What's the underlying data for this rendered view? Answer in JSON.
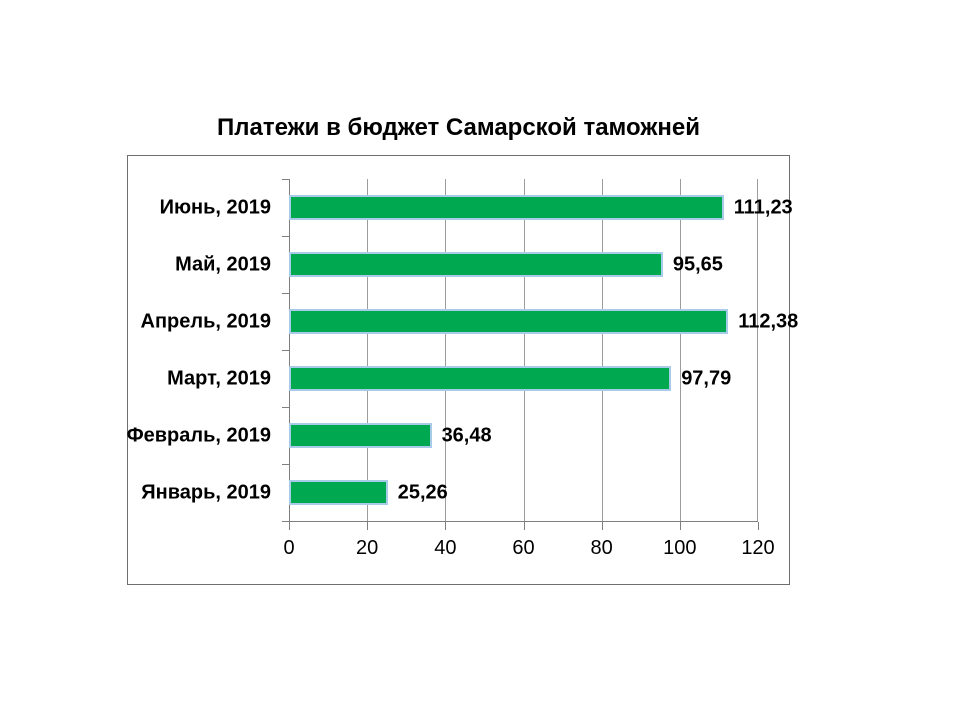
{
  "page": {
    "background": "#ffffff"
  },
  "chart_data": {
    "type": "bar",
    "orientation": "horizontal",
    "title": "Платежи в бюджет Самарской таможней",
    "categories": [
      "Июнь, 2019",
      "Май, 2019",
      "Апрель, 2019",
      "Март, 2019",
      "Февраль, 2019",
      "Январь, 2019"
    ],
    "values": [
      111.23,
      95.65,
      112.38,
      97.79,
      36.48,
      25.26
    ],
    "value_labels": [
      "111,23",
      "95,65",
      "112,38",
      "97,79",
      "36,48",
      "25,26"
    ],
    "xlabel": "",
    "ylabel": "",
    "xlim": [
      0,
      120
    ],
    "x_ticks": [
      0,
      20,
      40,
      60,
      80,
      100,
      120
    ],
    "x_tick_labels": [
      "0",
      "20",
      "40",
      "60",
      "80",
      "100",
      "120"
    ],
    "grid": true,
    "legend": false,
    "colors": {
      "bar_fill": "#00a94f",
      "bar_border": "#a8cbe8",
      "gridline": "#9c9c9c",
      "axis": "#7f7f7f",
      "frame_border": "#6e6e6e",
      "text": "#000000"
    }
  }
}
